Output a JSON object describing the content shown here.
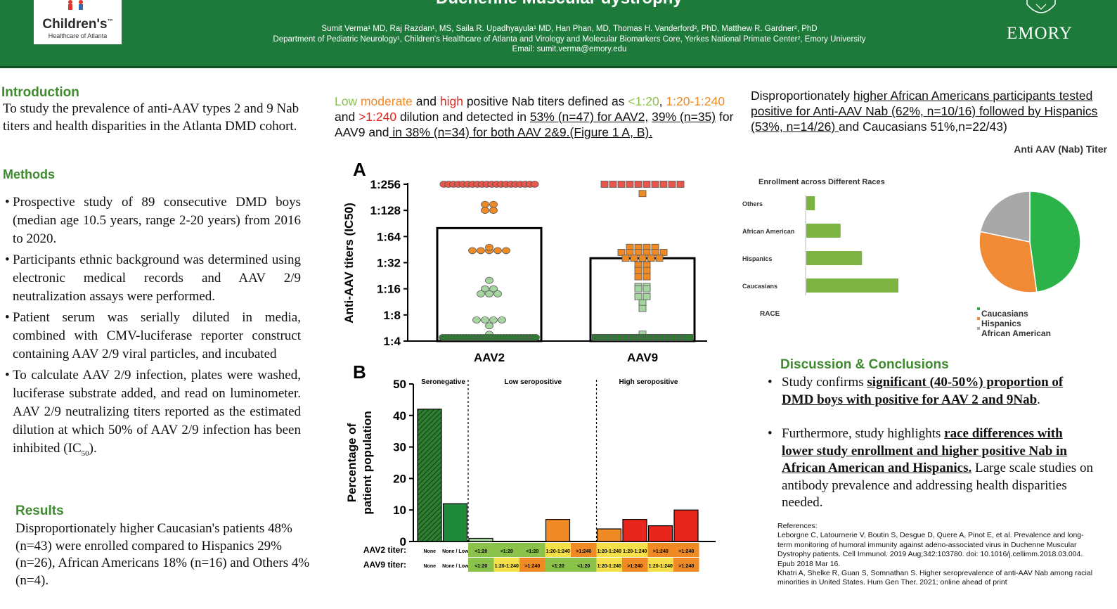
{
  "header": {
    "title": "Duchenne Muscular dystrophy",
    "authors_line": "Sumit Verma¹ MD, Raj Razdan¹, MS, Saila R. Upadhyayula¹ MD, Han Phan, MD, Thomas H. Vanderford², PhD, Matthew R. Gardner², PhD",
    "affiliation_line": "Department of Pediatric Neurology¹, Children's Healthcare of Atlanta and Virology and Molecular Biomarkers Core, Yerkes National Primate Center², Emory University",
    "email_line": "Email: sumit.verma@emory.edu",
    "left_logo_main": "Children's",
    "left_logo_tm": "™",
    "left_logo_sub": "Healthcare of Atlanta",
    "right_logo": "EMORY"
  },
  "introduction": {
    "heading": "Introduction",
    "text": "To study the prevalence of anti-AAV types 2 and 9 Nab titers and health disparities in the Atlanta DMD cohort."
  },
  "methods": {
    "heading": "Methods",
    "bullets": [
      "Prospective study of 89 consecutive DMD boys (median age 10.5 years, range 2-20 years) from 2016 to 2020.",
      "Participants ethnic background was determined using electronic medical records and AAV 2/9 neutralization assays were performed.",
      "Patient serum was serially diluted in media, combined with CMV-luciferase reporter construct containing AAV 2/9 viral particles, and incubated",
      "To calculate AAV 2/9 infection, plates were washed, luciferase substrate added, and read on luminometer. AAV 2/9 neutralizing titers reported as the estimated dilution at which 50% of AAV 2/9 infection has been inhibited (IC"
    ],
    "ic_sub": "50",
    "ic_end": ")."
  },
  "results": {
    "heading": "Results",
    "text": "Disproportionately higher Caucasian's patients 48% (n=43) were enrolled compared to Hispanics 29% (n=26), African Americans 18% (n=16) and Others 4% (n=4)."
  },
  "middle_text": {
    "low": "Low",
    "moderate": "moderate",
    "and1": " and ",
    "high": "high",
    "p1": " positive Nab titers defined as ",
    "d1": "<1:20",
    "comma": ",",
    "d2": "1:20-1:240",
    "and2": " and ",
    "d3": ">1:240",
    "p2": " dilution and detected in ",
    "u1": "53% (n=47) for AAV2,",
    "u2": "39% (n=35)",
    "p3": " for AAV9 and",
    "u3": " in 38% (n=34) for both AAV 2&9.(Figure 1 A, B)."
  },
  "right_text": {
    "p1": "Disproportionately ",
    "u1": "higher African Americans participants tested positive for Anti-AAV Nab (62%, n=10/16) followed by Hispanics (53%, n=14/26) ",
    "p2": "and Caucasians 51%,n=22/43)"
  },
  "discussion": {
    "heading": "Discussion & Conclusions",
    "b1_pre": "Study confirms ",
    "b1_bold": "significant (40-50%) proportion of DMD boys with positive for AAV 2 and 9Nab",
    "b1_post": ".",
    "b2_pre": "Furthermore, study highlights ",
    "b2_bold": "race differences with lower study enrollment and higher positive Nab in African American and Hispanics.",
    "b2_post": " Large scale studies on antibody prevalence and addressing health disparities needed."
  },
  "references": {
    "label": "References:",
    "ref1": "Leborgne C, Latournerie V, Boutin S, Desgue D, Quere A, Pinot E, et al. Prevalence and long-term monitoring of humoral immunity against adeno-associated virus in Duchenne Muscular Dystrophy patients. Cell Immunol. 2019 Aug;342:103780. doi: 10.1016/j.cellimm.2018.03.004. Epub 2018 Mar 16.",
    "ref2": "Khatri A, Shelke R, Guan S, Somnathan S. Higher seroprevalence of anti-AAV Nab among racial minorities in United States. Hum Gen Ther. 2021; online ahead of print"
  },
  "chart_data": [
    {
      "type": "scatter",
      "panel": "A",
      "ylabel": "Anti-AAV titers (IC50)",
      "y_ticks": [
        "1:4",
        "1:8",
        "1:16",
        "1:32",
        "1:64",
        "1:128",
        "1:256"
      ],
      "scale": "log2",
      "categories": [
        "AAV2",
        "AAV9"
      ],
      "bar_median": {
        "AAV2": 80,
        "AAV9": 36
      },
      "groups": [
        {
          "name": "AAV2",
          "marker": "circle",
          "points": [
            {
              "y": 256,
              "n": 20,
              "color": "#e8564b"
            },
            {
              "y": 150,
              "n": 2,
              "color": "#f08a24"
            },
            {
              "y": 128,
              "n": 2,
              "color": "#f08a24"
            },
            {
              "y": 44,
              "n": 5,
              "color": "#f08a24"
            },
            {
              "y": 48,
              "n": 1,
              "color": "#f08a24"
            },
            {
              "y": 16,
              "n": 2,
              "color": "#a5d6a0"
            },
            {
              "y": 20,
              "n": 1,
              "color": "#a5d6a0"
            },
            {
              "y": 14,
              "n": 3,
              "color": "#a5d6a0"
            },
            {
              "y": 7,
              "n": 4,
              "color": "#a5d6a0"
            },
            {
              "y": 6,
              "n": 1,
              "color": "#a5d6a0"
            },
            {
              "y": 4.8,
              "n": 1,
              "color": "#a5d6a0"
            },
            {
              "y": 4.4,
              "n": 33,
              "color": "#2e7d32"
            }
          ]
        },
        {
          "name": "AAV9",
          "marker": "square",
          "points": [
            {
              "y": 256,
              "n": 10,
              "color": "#e8564b"
            },
            {
              "y": 200,
              "n": 1,
              "color": "#f08a24"
            },
            {
              "y": 48,
              "n": 4,
              "color": "#f08a24"
            },
            {
              "y": 42,
              "n": 6,
              "color": "#f08a24"
            },
            {
              "y": 36,
              "n": 5,
              "color": "#f08a24"
            },
            {
              "y": 30,
              "n": 2,
              "color": "#f08a24"
            },
            {
              "y": 26,
              "n": 2,
              "color": "#f08a24"
            },
            {
              "y": 22,
              "n": 2,
              "color": "#f08a24"
            },
            {
              "y": 17,
              "n": 2,
              "color": "#a5d6a0"
            },
            {
              "y": 16,
              "n": 2,
              "color": "#a5d6a0"
            },
            {
              "y": 13,
              "n": 2,
              "color": "#a5d6a0"
            },
            {
              "y": 11,
              "n": 1,
              "color": "#a5d6a0"
            },
            {
              "y": 9.5,
              "n": 1,
              "color": "#a5d6a0"
            },
            {
              "y": 4.8,
              "n": 1,
              "color": "#a5d6a0"
            },
            {
              "y": 4.4,
              "n": 52,
              "color": "#2e7d32"
            }
          ]
        }
      ]
    },
    {
      "type": "bar",
      "panel": "B",
      "ylabel": "Percentage of patient population",
      "ylim": [
        0,
        50
      ],
      "yticks": [
        0,
        10,
        20,
        30,
        40,
        50
      ],
      "sections": [
        "Seronegative",
        "Low seropositive",
        "High seropositive"
      ],
      "values": [
        42,
        12,
        1,
        0,
        0,
        7,
        0,
        4,
        7,
        5,
        10
      ],
      "colors": [
        "#2e7d32",
        "#1f8a3a",
        "#a5d6a0",
        "#a5d6a0",
        "#a5d6a0",
        "#f08a24",
        "#e8564b",
        "#f08a24",
        "#e8261d",
        "#e8261d",
        "#e8261d"
      ],
      "aav2_label": "AAV2 titer:",
      "aav9_label": "AAV9 titer:",
      "aav2_titers": [
        "None",
        "None / Low",
        "<1:20",
        "<1:20",
        "<1:20",
        "1:20-1:240",
        ">1:240",
        "1:20-1:240",
        "1:20-1:240",
        ">1:240",
        ">1:240"
      ],
      "aav9_titers": [
        "None",
        "None / Low",
        "<1:20",
        "1:20-1:240",
        ">1:240",
        "<1:20",
        "<1:20",
        "1:20-1:240",
        ">1:240",
        "1:20-1:240",
        ">1:240"
      ],
      "titer_colors": {
        "None": "#ffffff",
        "None / Low": "#ffffff",
        "<1:20": "#8bc34a",
        "1:20-1:240": "#f5e04a",
        ">1:240": "#f08a24"
      }
    },
    {
      "type": "bar",
      "title": "Enrollment across Different Races",
      "orientation": "horizontal",
      "categories": [
        "Others",
        "African American",
        "Hispanics",
        "Caucasians"
      ],
      "values": [
        4,
        16,
        26,
        43
      ],
      "axis_label": "RACE",
      "color": "#7cb342"
    },
    {
      "type": "pie",
      "title": "Anti AAV (Nab) Titer",
      "categories": [
        "Caucasians",
        "Hispanics",
        "African American"
      ],
      "values": [
        22,
        14,
        10
      ],
      "colors": [
        "#2bb34a",
        "#f08a34",
        "#a8a8a8"
      ]
    }
  ]
}
